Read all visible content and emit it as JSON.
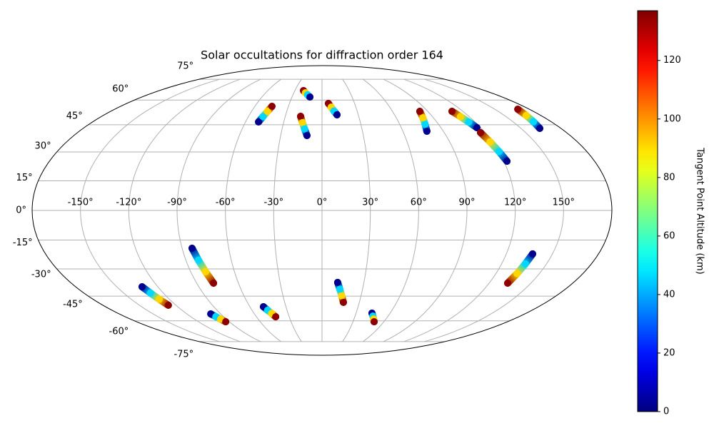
{
  "chart_data": {
    "type": "scatter",
    "projection": "mollweide",
    "title": "Solar occultations for diffraction order 164",
    "grid": true,
    "xlim": [
      -180,
      180
    ],
    "ylim": [
      -90,
      90
    ],
    "xticks": [
      {
        "value": -150,
        "label": "-150°"
      },
      {
        "value": -120,
        "label": "-120°"
      },
      {
        "value": -90,
        "label": "-90°"
      },
      {
        "value": -60,
        "label": "-60°"
      },
      {
        "value": -30,
        "label": "-30°"
      },
      {
        "value": 0,
        "label": "0°"
      },
      {
        "value": 30,
        "label": "30°"
      },
      {
        "value": 60,
        "label": "60°"
      },
      {
        "value": 90,
        "label": "90°"
      },
      {
        "value": 120,
        "label": "120°"
      },
      {
        "value": 150,
        "label": "150°"
      }
    ],
    "yticks": [
      {
        "value": -75,
        "label": "-75°"
      },
      {
        "value": -60,
        "label": "-60°"
      },
      {
        "value": -45,
        "label": "-45°"
      },
      {
        "value": -30,
        "label": "-30°"
      },
      {
        "value": -15,
        "label": "-15°"
      },
      {
        "value": 0,
        "label": "0°"
      },
      {
        "value": 15,
        "label": "15°"
      },
      {
        "value": 30,
        "label": "30°"
      },
      {
        "value": 45,
        "label": "45°"
      },
      {
        "value": 60,
        "label": "60°"
      },
      {
        "value": 75,
        "label": "75°"
      }
    ],
    "colormap": "jet",
    "tracks": [
      {
        "lon": [
          -49.8,
          -48.1,
          -46.4,
          -44.7
        ],
        "lat": [
          46.6,
          49.7,
          52.9,
          56.0
        ],
        "alt": [
          2,
          46,
          91,
          135
        ]
      },
      {
        "lon": [
          -20.5,
          -17.7,
          -14.9,
          -12.1
        ],
        "lat": [
          66.4,
          64.9,
          63.5,
          62.0
        ],
        "alt": [
          135,
          91,
          46,
          2
        ]
      },
      {
        "lon": [
          -17.5,
          -15.3,
          -13.1,
          -10.9
        ],
        "lat": [
          49.9,
          46.2,
          42.6,
          38.9
        ],
        "alt": [
          135,
          91,
          46,
          2
        ]
      },
      {
        "lon": [
          5.9,
          8.1,
          10.2,
          12.4
        ],
        "lat": [
          57.8,
          55.5,
          53.1,
          50.8
        ],
        "alt": [
          135,
          91,
          46,
          2
        ]
      },
      {
        "lon": [
          83.3,
          81.5,
          79.6,
          77.8
        ],
        "lat": [
          52.9,
          49.0,
          45.2,
          41.3
        ],
        "alt": [
          135,
          91,
          46,
          2
        ]
      },
      {
        "lon": [
          110.7,
          112.9,
          115.0,
          117.2
        ],
        "lat": [
          52.9,
          49.7,
          46.5,
          43.3
        ],
        "alt": [
          135,
          91,
          46,
          2
        ]
      },
      {
        "lon": [
          116.7,
          118.5,
          120.3,
          122.1
        ],
        "lat": [
          40.5,
          35.4,
          30.2,
          25.1
        ],
        "alt": [
          135,
          91,
          46,
          2
        ]
      },
      {
        "lon": [
          170.0,
          168.0,
          166.1,
          164.1
        ],
        "lat": [
          54.2,
          50.4,
          46.7,
          42.9
        ],
        "alt": [
          135,
          91,
          46,
          2
        ]
      },
      {
        "lon": [
          -83.6,
          -81.7,
          -79.8,
          -77.9
        ],
        "lat": [
          -19.2,
          -25.4,
          -31.5,
          -37.7
        ],
        "alt": [
          2,
          46,
          91,
          135
        ]
      },
      {
        "lon": [
          -131.5,
          -129.7,
          -128.0,
          -126.2
        ],
        "lat": [
          -39.7,
          -43.2,
          -46.8,
          -50.3
        ],
        "alt": [
          2,
          46,
          91,
          135
        ]
      },
      {
        "lon": [
          -98.8,
          -97.0,
          -95.3,
          -93.5
        ],
        "lat": [
          -55.6,
          -57.3,
          -58.9,
          -60.6
        ],
        "alt": [
          2,
          46,
          91,
          135
        ]
      },
      {
        "lon": [
          -48.7,
          -46.6,
          -44.5,
          -42.4
        ],
        "lat": [
          -51.2,
          -53.3,
          -55.3,
          -57.4
        ],
        "alt": [
          2,
          46,
          91,
          135
        ]
      },
      {
        "lon": [
          11.2,
          13.2,
          15.2,
          17.2
        ],
        "lat": [
          -37.3,
          -41.1,
          -44.8,
          -48.6
        ],
        "alt": [
          2,
          46,
          91,
          135
        ]
      },
      {
        "lon": [
          44.0,
          46.2,
          48.4,
          50.6
        ],
        "lat": [
          -55.1,
          -56.9,
          -58.8,
          -60.6
        ],
        "alt": [
          2,
          46,
          91,
          135
        ]
      },
      {
        "lon": [
          137.1,
          135.8,
          134.6,
          133.3
        ],
        "lat": [
          -22.1,
          -27.3,
          -32.5,
          -37.7
        ],
        "alt": [
          2,
          46,
          91,
          135
        ]
      }
    ],
    "colorbar": {
      "label": "Tangent Point Altitude (km)",
      "clim": [
        0,
        137
      ],
      "ticks": [
        0,
        20,
        40,
        60,
        80,
        100,
        120
      ]
    }
  }
}
